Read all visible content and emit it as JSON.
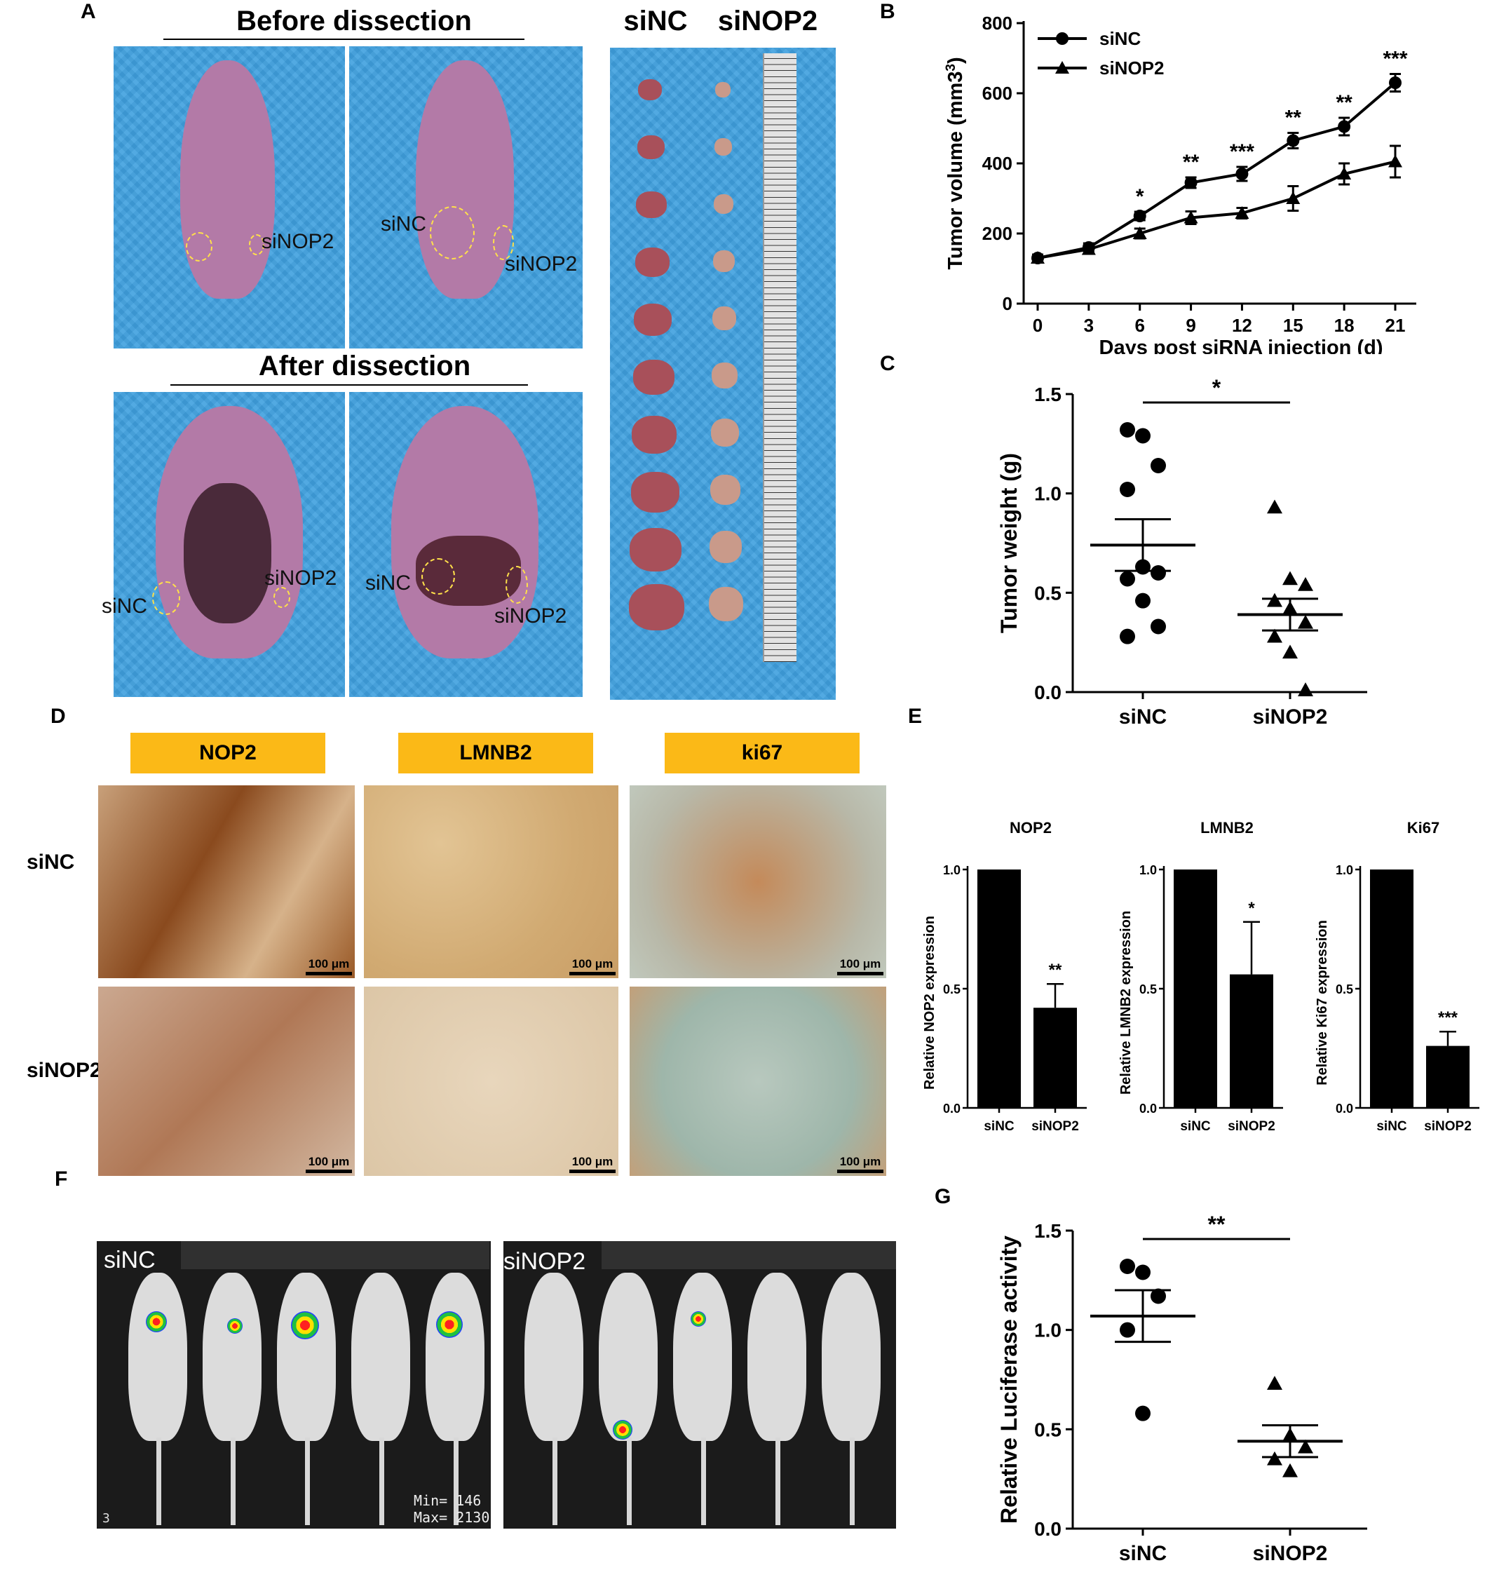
{
  "panels": {
    "A": "A",
    "B": "B",
    "C": "C",
    "D": "D",
    "E": "E",
    "F": "F",
    "G": "G"
  },
  "panel_a": {
    "before_title": "Before dissection",
    "after_title": "After dissection",
    "col_siNC": "siNC",
    "col_siNOP2": "siNOP2",
    "labels": {
      "siNOP2_1": "siNOP2",
      "siNC_2": "siNC",
      "siNOP2_2": "siNOP2",
      "siNC_3": "siNC",
      "siNOP2_3": "siNOP2",
      "siNC_4": "siNC",
      "siNOP2_4": "siNOP2"
    }
  },
  "panel_d": {
    "headers": [
      "NOP2",
      "LMNB2",
      "ki67"
    ],
    "rows": [
      "siNC",
      "siNOP2"
    ],
    "scale": "100 μm"
  },
  "panel_f": {
    "left_label": "siNC",
    "right_label": "siNOP2",
    "frame_no": "3",
    "min_text": "Min= 146",
    "max_text": "Max= 2130"
  },
  "colors": {
    "marker": "#000000",
    "label_box": "#fbb917",
    "photo_bg": "#3fa0df"
  },
  "chart_data": [
    {
      "id": "B",
      "type": "line",
      "xlabel": "Days post siRNA injection (d)",
      "ylabel": "Tumor volume (mm3)",
      "x": [
        0,
        3,
        6,
        9,
        12,
        15,
        18,
        21
      ],
      "xlim": [
        0,
        21
      ],
      "ylim": [
        0,
        800
      ],
      "yticks": [
        0,
        200,
        400,
        600,
        800
      ],
      "legend_position": "top-left",
      "series": [
        {
          "name": "siNC",
          "marker": "circle",
          "values": [
            130,
            160,
            250,
            345,
            370,
            465,
            505,
            630
          ],
          "errors": [
            10,
            12,
            12,
            15,
            20,
            22,
            25,
            25
          ]
        },
        {
          "name": "siNOP2",
          "marker": "triangle",
          "values": [
            130,
            155,
            200,
            245,
            258,
            300,
            370,
            405
          ],
          "errors": [
            10,
            12,
            14,
            18,
            15,
            35,
            30,
            45
          ]
        }
      ],
      "significance": [
        "",
        "",
        "*",
        "**",
        "***",
        "**",
        "**",
        "***"
      ]
    },
    {
      "id": "C",
      "type": "scatter",
      "ylabel": "Tumor weight (g)",
      "categories": [
        "siNC",
        "siNOP2"
      ],
      "ylim": [
        0,
        1.5
      ],
      "yticks": [
        "0.0",
        "0.5",
        "1.0",
        "1.5"
      ],
      "groups": [
        {
          "name": "siNC",
          "marker": "circle",
          "points": [
            1.32,
            1.29,
            1.14,
            1.02,
            0.63,
            0.6,
            0.57,
            0.46,
            0.33,
            0.28
          ],
          "mean": 0.74,
          "sem": 0.13
        },
        {
          "name": "siNOP2",
          "marker": "triangle",
          "points": [
            0.93,
            0.57,
            0.54,
            0.46,
            0.42,
            0.35,
            0.28,
            0.2,
            0.01
          ],
          "mean": 0.39,
          "sem": 0.08
        }
      ],
      "significance": "*"
    },
    {
      "id": "E1",
      "type": "bar",
      "title": "NOP2",
      "ylabel": "Relative NOP2 expression",
      "categories": [
        "siNC",
        "siNOP2"
      ],
      "values": [
        1.0,
        0.42
      ],
      "errors": [
        0,
        0.1
      ],
      "ylim": [
        0,
        1.0
      ],
      "yticks": [
        "0.0",
        "0.5",
        "1.0"
      ],
      "significance": "**"
    },
    {
      "id": "E2",
      "type": "bar",
      "title": "LMNB2",
      "ylabel": "Relative LMNB2 expression",
      "categories": [
        "siNC",
        "siNOP2"
      ],
      "values": [
        1.0,
        0.56
      ],
      "errors": [
        0,
        0.22
      ],
      "ylim": [
        0,
        1.0
      ],
      "yticks": [
        "0.0",
        "0.5",
        "1.0"
      ],
      "significance": "*"
    },
    {
      "id": "E3",
      "type": "bar",
      "title": "Ki67",
      "ylabel": "Relative Ki67 expression",
      "categories": [
        "siNC",
        "siNOP2"
      ],
      "values": [
        1.0,
        0.26
      ],
      "errors": [
        0,
        0.06
      ],
      "ylim": [
        0,
        1.0
      ],
      "yticks": [
        "0.0",
        "0.5",
        "1.0"
      ],
      "significance": "***"
    },
    {
      "id": "G",
      "type": "scatter",
      "ylabel": "Relative Luciferase activity",
      "categories": [
        "siNC",
        "siNOP2"
      ],
      "ylim": [
        0,
        1.5
      ],
      "yticks": [
        "0.0",
        "0.5",
        "1.0",
        "1.5"
      ],
      "groups": [
        {
          "name": "siNC",
          "marker": "circle",
          "points": [
            1.32,
            1.29,
            1.17,
            1.0,
            0.58
          ],
          "mean": 1.07,
          "sem": 0.13
        },
        {
          "name": "siNOP2",
          "marker": "triangle",
          "points": [
            0.73,
            0.47,
            0.41,
            0.35,
            0.29
          ],
          "mean": 0.44,
          "sem": 0.08
        }
      ],
      "significance": "**"
    }
  ]
}
